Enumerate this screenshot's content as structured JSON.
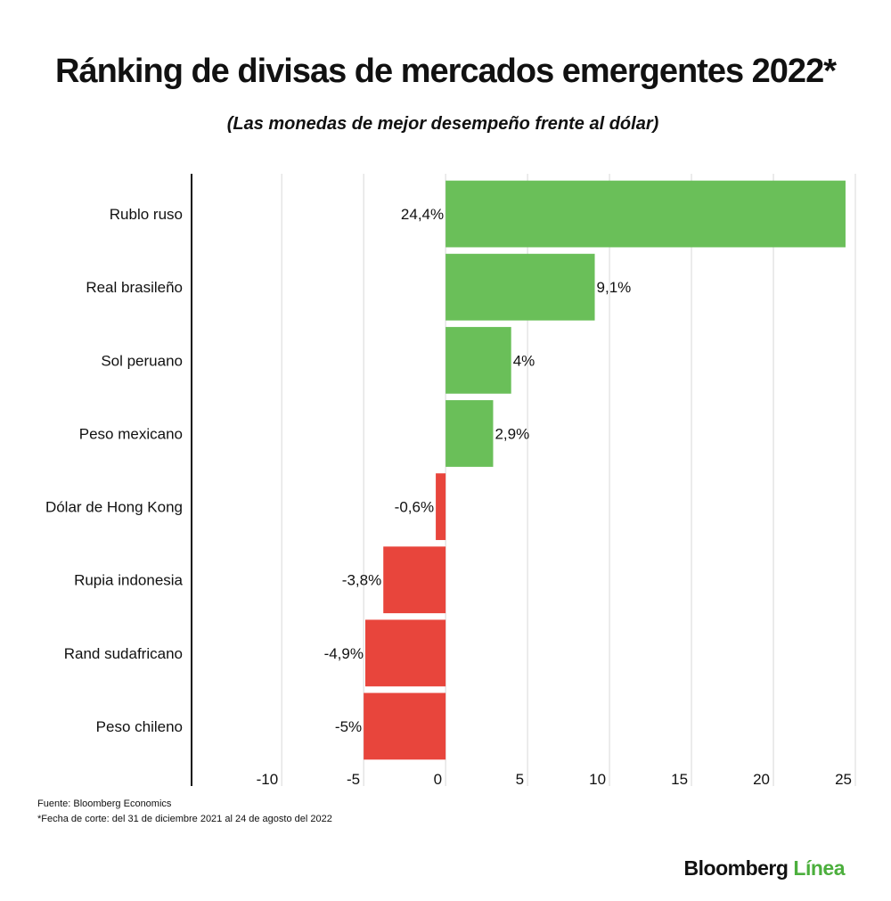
{
  "chart_data": {
    "type": "hbar",
    "title": "Ránking de divisas de mercados emergentes 2022*",
    "subtitle": "(Las monedas de mejor desempeño frente al dólar)",
    "categories": [
      "Rublo ruso",
      "Real brasileño",
      "Sol peruano",
      "Peso mexicano",
      "Dólar de Hong Kong",
      "Rupia indonesia",
      "Rand sudafricano",
      "Peso chileno"
    ],
    "values": [
      24.4,
      9.1,
      4,
      2.9,
      -0.6,
      -3.8,
      -4.9,
      -5
    ],
    "value_labels": [
      "24,4%",
      "9,1%",
      "4%",
      "2,9%",
      "-0,6%",
      "-3,8%",
      "-4,9%",
      "-5%"
    ],
    "positive_color": "#6abf59",
    "negative_color": "#e8453c",
    "xlim": [
      -15.5,
      25
    ],
    "xticks": [
      -10,
      -5,
      0,
      5,
      10,
      15,
      20,
      25
    ],
    "grid": true,
    "source": "Fuente: Bloomberg Economics",
    "note": "*Fecha de corte: del 31 de diciembre 2021 al 24 de agosto del 2022",
    "logo": {
      "brand": "Bloomberg",
      "product": "Línea"
    }
  }
}
